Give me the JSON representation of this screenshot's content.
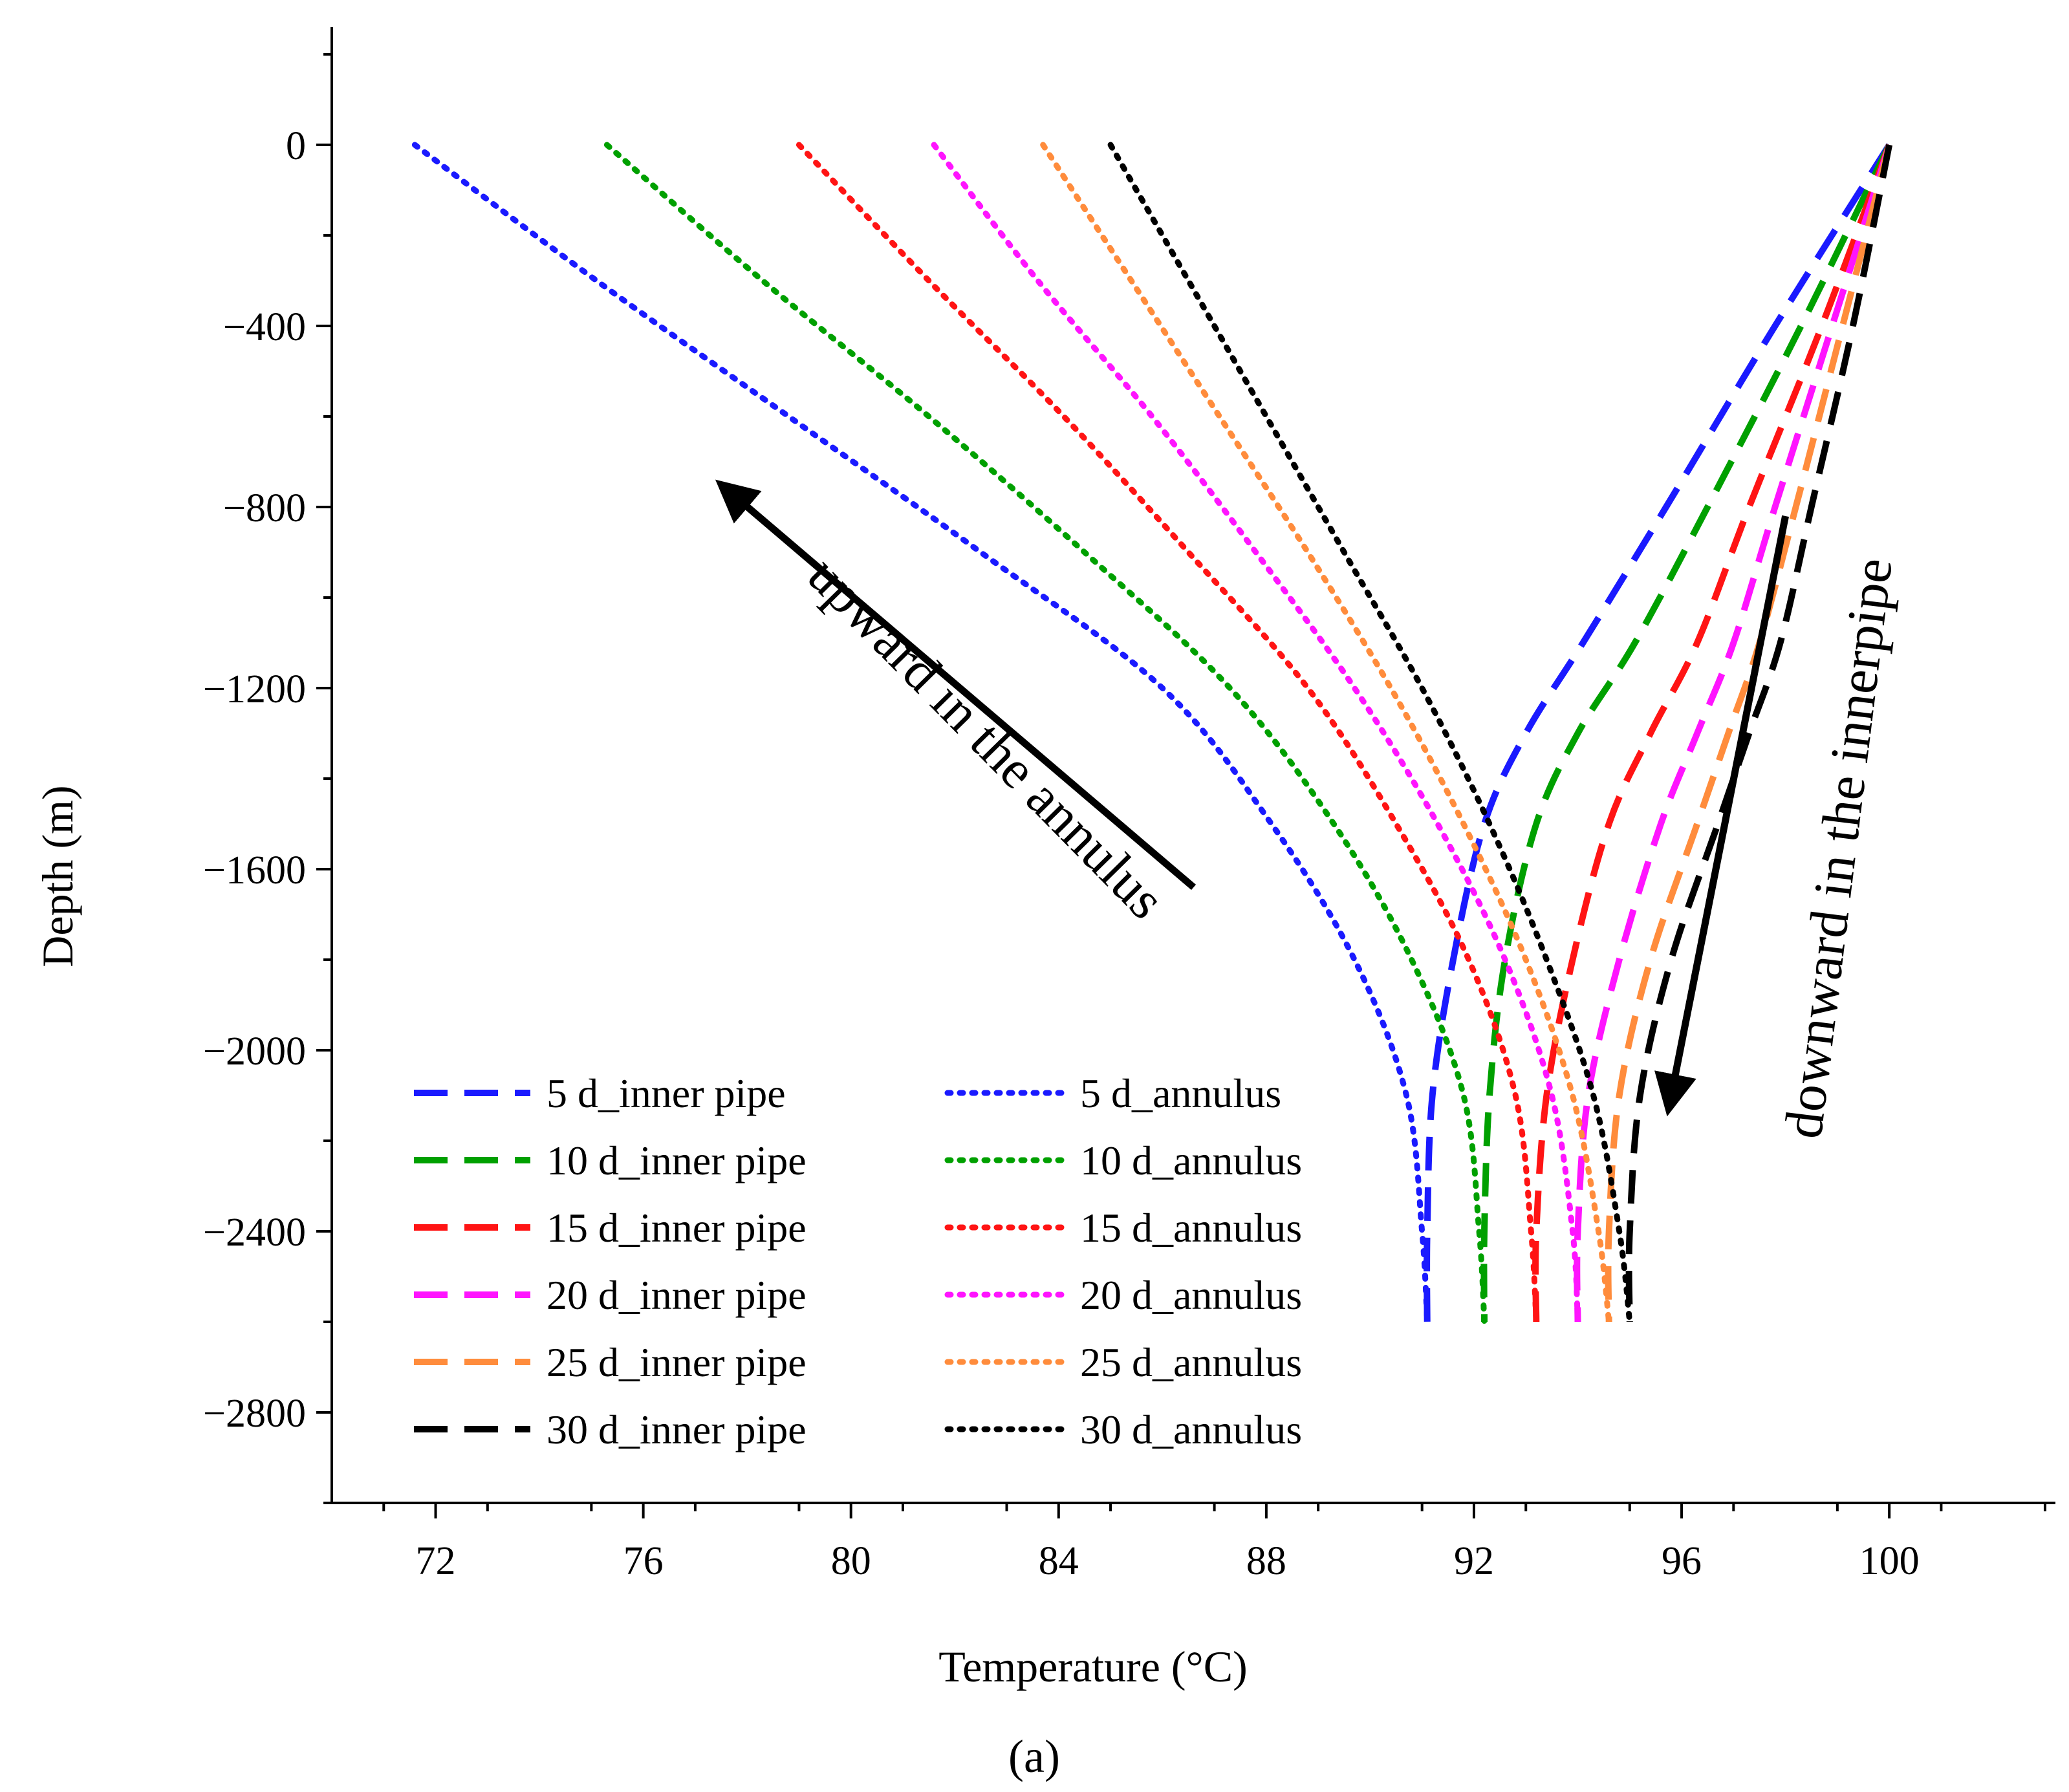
{
  "chart_data": {
    "type": "line",
    "xlabel": "Temperature (°C)",
    "ylabel": "Depth (m)",
    "xlim": [
      70,
      103.2
    ],
    "ylim": [
      -3000,
      260
    ],
    "xticks": [
      72,
      76,
      80,
      84,
      88,
      92,
      96,
      100
    ],
    "yticks": [
      0,
      -400,
      -800,
      -1200,
      -1600,
      -2000,
      -2400,
      -2800
    ],
    "ytick_labels": [
      "0",
      "−400",
      "−800",
      "−1200",
      "−1600",
      "−2000",
      "−2400",
      "−2800"
    ],
    "caption": "(a)",
    "colors": {
      "5 d": "#1a1aff",
      "10 d": "#00a000",
      "15 d": "#ff1414",
      "20 d": "#ff14ff",
      "25 d": "#ff8c3c",
      "30 d": "#000000"
    },
    "series": [
      {
        "name": "5 d_inner pipe",
        "color": "#1a1aff",
        "style": "dashed",
        "points": [
          [
            100,
            0
          ],
          [
            97.8,
            -400
          ],
          [
            95.7,
            -800
          ],
          [
            94.1,
            -1100
          ],
          [
            93,
            -1300
          ],
          [
            92.2,
            -1500
          ],
          [
            91.6,
            -1800
          ],
          [
            91.2,
            -2100
          ],
          [
            91.1,
            -2400
          ],
          [
            91.1,
            -2600
          ]
        ]
      },
      {
        "name": "10 d_inner pipe",
        "color": "#00a000",
        "style": "dashed",
        "points": [
          [
            100,
            0
          ],
          [
            98.3,
            -400
          ],
          [
            96.5,
            -800
          ],
          [
            95.1,
            -1100
          ],
          [
            94,
            -1300
          ],
          [
            93.2,
            -1500
          ],
          [
            92.6,
            -1800
          ],
          [
            92.3,
            -2100
          ],
          [
            92.2,
            -2400
          ],
          [
            92.2,
            -2600
          ]
        ]
      },
      {
        "name": "15 d_inner pipe",
        "color": "#ff1414",
        "style": "dashed",
        "points": [
          [
            100,
            0
          ],
          [
            98.7,
            -400
          ],
          [
            97.3,
            -800
          ],
          [
            96.3,
            -1100
          ],
          [
            95.4,
            -1300
          ],
          [
            94.6,
            -1500
          ],
          [
            93.9,
            -1800
          ],
          [
            93.4,
            -2100
          ],
          [
            93.2,
            -2400
          ],
          [
            93.2,
            -2600
          ]
        ]
      },
      {
        "name": "20 d_inner pipe",
        "color": "#ff14ff",
        "style": "dashed",
        "points": [
          [
            100,
            0
          ],
          [
            98.9,
            -400
          ],
          [
            97.8,
            -800
          ],
          [
            97,
            -1100
          ],
          [
            96.3,
            -1300
          ],
          [
            95.6,
            -1500
          ],
          [
            94.8,
            -1800
          ],
          [
            94.2,
            -2100
          ],
          [
            94,
            -2400
          ],
          [
            94,
            -2600
          ]
        ]
      },
      {
        "name": "25 d_inner pipe",
        "color": "#ff8c3c",
        "style": "dashed",
        "points": [
          [
            100,
            0
          ],
          [
            99.1,
            -400
          ],
          [
            98.2,
            -800
          ],
          [
            97.5,
            -1100
          ],
          [
            96.9,
            -1300
          ],
          [
            96.3,
            -1500
          ],
          [
            95.4,
            -1800
          ],
          [
            94.8,
            -2100
          ],
          [
            94.6,
            -2400
          ],
          [
            94.6,
            -2600
          ]
        ]
      },
      {
        "name": "30 d_inner pipe",
        "color": "#000000",
        "style": "dashed",
        "points": [
          [
            100,
            0
          ],
          [
            99.3,
            -400
          ],
          [
            98.5,
            -800
          ],
          [
            97.9,
            -1100
          ],
          [
            97.3,
            -1300
          ],
          [
            96.7,
            -1500
          ],
          [
            95.8,
            -1800
          ],
          [
            95.2,
            -2100
          ],
          [
            95,
            -2400
          ],
          [
            95,
            -2600
          ]
        ]
      },
      {
        "name": "5 d_annulus",
        "color": "#1a1aff",
        "style": "dotted",
        "points": [
          [
            71.6,
            0
          ],
          [
            75.1,
            -300
          ],
          [
            78.8,
            -600
          ],
          [
            82.5,
            -900
          ],
          [
            86,
            -1200
          ],
          [
            88.1,
            -1500
          ],
          [
            89.7,
            -1800
          ],
          [
            90.7,
            -2100
          ],
          [
            91,
            -2400
          ],
          [
            91.1,
            -2600
          ]
        ]
      },
      {
        "name": "10 d_annulus",
        "color": "#00a000",
        "style": "dotted",
        "points": [
          [
            75.3,
            0
          ],
          [
            78.3,
            -300
          ],
          [
            81.5,
            -600
          ],
          [
            84.5,
            -900
          ],
          [
            87.3,
            -1200
          ],
          [
            89.3,
            -1500
          ],
          [
            90.8,
            -1800
          ],
          [
            91.8,
            -2100
          ],
          [
            92.1,
            -2400
          ],
          [
            92.2,
            -2600
          ]
        ]
      },
      {
        "name": "15 d_annulus",
        "color": "#ff1414",
        "style": "dotted",
        "points": [
          [
            79,
            0
          ],
          [
            81.5,
            -300
          ],
          [
            84.1,
            -600
          ],
          [
            86.5,
            -900
          ],
          [
            88.8,
            -1200
          ],
          [
            90.5,
            -1500
          ],
          [
            91.9,
            -1800
          ],
          [
            92.8,
            -2100
          ],
          [
            93.1,
            -2400
          ],
          [
            93.2,
            -2600
          ]
        ]
      },
      {
        "name": "20 d_annulus",
        "color": "#ff14ff",
        "style": "dotted",
        "points": [
          [
            81.6,
            0
          ],
          [
            83.6,
            -300
          ],
          [
            85.8,
            -600
          ],
          [
            87.8,
            -900
          ],
          [
            89.7,
            -1200
          ],
          [
            91.3,
            -1500
          ],
          [
            92.6,
            -1800
          ],
          [
            93.5,
            -2100
          ],
          [
            93.9,
            -2400
          ],
          [
            94,
            -2600
          ]
        ]
      },
      {
        "name": "25 d_annulus",
        "color": "#ff8c3c",
        "style": "dotted",
        "points": [
          [
            83.7,
            0
          ],
          [
            85.4,
            -300
          ],
          [
            87.1,
            -600
          ],
          [
            88.8,
            -900
          ],
          [
            90.4,
            -1200
          ],
          [
            91.8,
            -1500
          ],
          [
            93,
            -1800
          ],
          [
            93.9,
            -2100
          ],
          [
            94.4,
            -2400
          ],
          [
            94.6,
            -2600
          ]
        ]
      },
      {
        "name": "30 d_annulus",
        "color": "#000000",
        "style": "dotted",
        "points": [
          [
            85,
            0
          ],
          [
            86.5,
            -300
          ],
          [
            88,
            -600
          ],
          [
            89.5,
            -900
          ],
          [
            91,
            -1200
          ],
          [
            92.3,
            -1500
          ],
          [
            93.4,
            -1800
          ],
          [
            94.3,
            -2100
          ],
          [
            94.8,
            -2400
          ],
          [
            95,
            -2600
          ]
        ]
      }
    ],
    "legend": {
      "placement": "bottom-left",
      "entries": [
        "5 d_inner pipe",
        "5 d_annulus",
        "10 d_inner pipe",
        "10 d_annulus",
        "15 d_inner pipe",
        "15 d_annulus",
        "20 d_inner pipe",
        "20 d_annulus",
        "25 d_inner pipe",
        "25 d_annulus",
        "30 d_inner pipe",
        "30 d_annulus"
      ]
    },
    "annotations": [
      {
        "text": "upward in the annulus",
        "arrow_from": [
          86.6,
          -1640
        ],
        "arrow_to": [
          77.7,
          -770
        ]
      },
      {
        "text": "downward in the innerpipe",
        "arrow_from": [
          98,
          -820
        ],
        "arrow_to": [
          95.8,
          -2100
        ]
      }
    ]
  }
}
